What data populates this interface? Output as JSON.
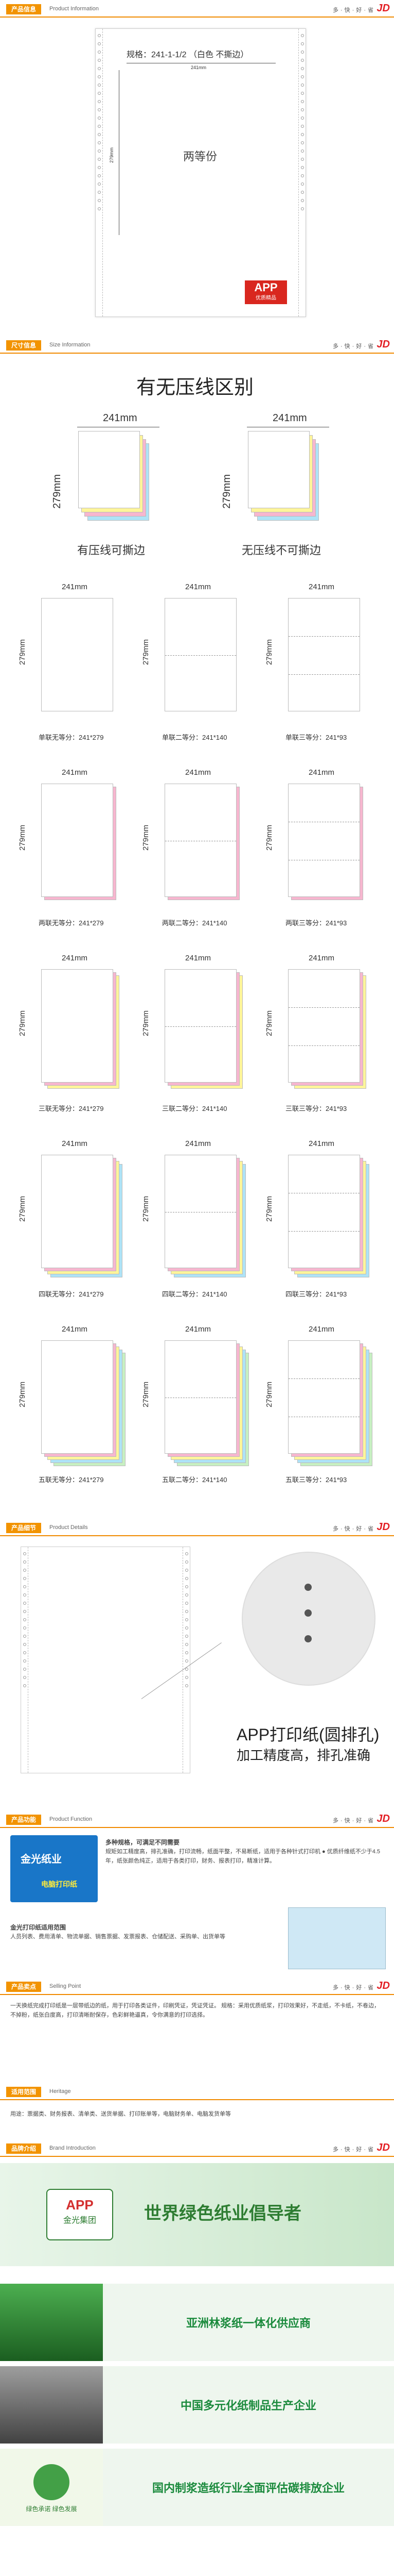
{
  "bars": [
    {
      "tag": "产品信息",
      "en": "Product Information",
      "slogan": "多·快·好·省",
      "jd": "JD"
    },
    {
      "tag": "尺寸信息",
      "en": "Size Information",
      "slogan": "多·快·好·省",
      "jd": "JD"
    },
    {
      "tag": "产品细节",
      "en": "Product Details",
      "slogan": "多·快·好·省",
      "jd": "JD"
    },
    {
      "tag": "产品功能",
      "en": "Product Function",
      "slogan": "多·快·好·省",
      "jd": "JD"
    },
    {
      "tag": "产品卖点",
      "en": "Selling Point",
      "slogan": "多·快·好·省",
      "jd": "JD"
    },
    {
      "tag": "适用范围",
      "en": "Heritage",
      "slogan": "",
      "jd": ""
    },
    {
      "tag": "品牌介绍",
      "en": "Brand Introduction",
      "slogan": "多·快·好·省",
      "jd": "JD"
    }
  ],
  "product": {
    "spec": "规格：241-1-1/2 （白色 不撕边）",
    "width": "241mm",
    "height": "279mm",
    "center": "两等份",
    "logo": "APP",
    "logo_sub": "优质精品"
  },
  "compare": {
    "title": "有无压线区别",
    "left_width": "241mm",
    "left_height": "279mm",
    "left_caption": "有压线可撕边",
    "right_width": "241mm",
    "right_height": "279mm",
    "right_caption": "无压线不可撕边"
  },
  "grid": {
    "width": "241mm",
    "height": "279mm",
    "rows": [
      [
        "单联无等分：241*279",
        "单联二等分：241*140",
        "单联三等分：241*93"
      ],
      [
        "两联无等分：241*279",
        "两联二等分：241*140",
        "两联三等分：241*93"
      ],
      [
        "三联无等分：241*279",
        "三联二等分：241*140",
        "三联三等分：241*93"
      ],
      [
        "四联无等分：241*279",
        "四联二等分：241*140",
        "四联三等分：241*93"
      ],
      [
        "五联无等分：241*279",
        "五联二等分：241*140",
        "五联三等分：241*93"
      ]
    ]
  },
  "details": {
    "title": "APP打印纸(圆排孔)",
    "sub": "加工精度高，排孔准确"
  },
  "function": {
    "box_brand": "金光纸业",
    "box_label": "电脑打印纸",
    "text1_title": "多种规格，可满足不同需要",
    "text1": "规矩如工精度高，排孔准确，打印流畅，纸面平整，不易断纸，适用于各种针式打印机 ● 优质纤维纸不少于4.5年，纸张颜色纯正，适用于各类打印，财务、报表打印，精准计算。",
    "text2_title": "金光打印纸适用范围",
    "text2": "人员列表、费用清单、物流单据、销售票据、发票报表、仓储配送、采购单、出货单等"
  },
  "selling": {
    "text": "一天换纸完成打印纸是一层带纸边的纸，用于打印各类证件，印刷凭证，凭证凭证。 规格：采用优质纸浆，打印效果好，不走纸，不卡纸，不卷边，不掉粉，纸张白度高，打印清晰耐保存，色彩鲜艳逼真，令你满意的打印选择。"
  },
  "heritage": {
    "text": "用途：票据类、财务报表、清单类、送货单据、打印账单等，电脑财务单、电脑发货单等"
  },
  "brand": {
    "group_logo": "APP",
    "group_name": "金光集团",
    "slogan": "世界绿色纸业倡导者",
    "rows": [
      "亚洲林浆纸一体化供应商",
      "中国多元化纸制品生产企业",
      "国内制浆造纸行业全面评估碳排放企业"
    ],
    "badge": "绿色承诺 绿色发展"
  }
}
